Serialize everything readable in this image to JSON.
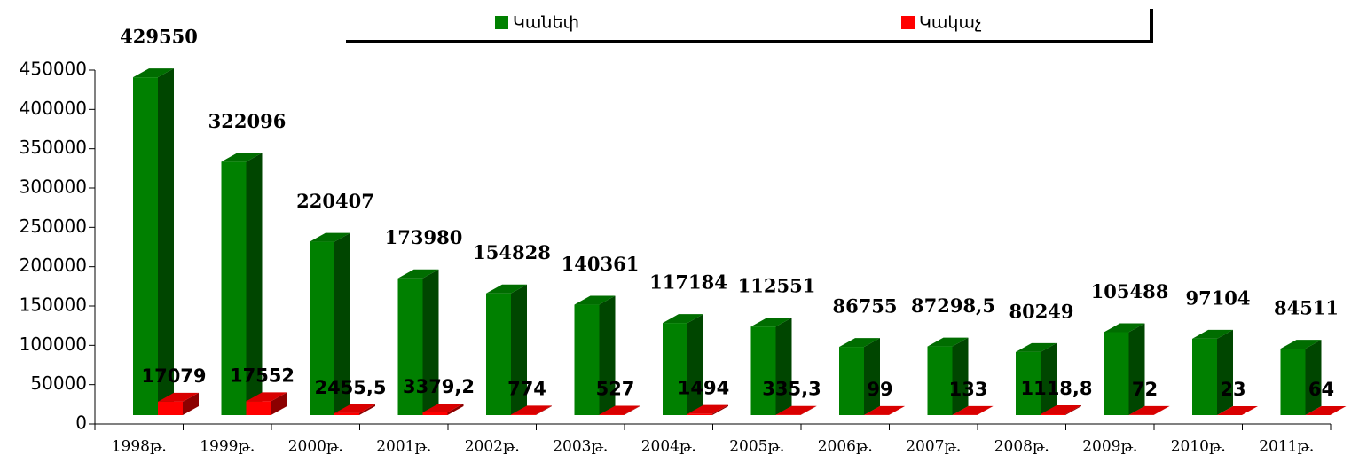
{
  "chart_data": {
    "type": "bar3d",
    "categories": [
      "1998թ.",
      "1999թ.",
      "2000թ.",
      "2001թ.",
      "2002թ.",
      "2003թ.",
      "2004թ.",
      "2005թ.",
      "2006թ.",
      "2007թ.",
      "2008թ.",
      "2009թ.",
      "2010թ.",
      "2011թ."
    ],
    "series": [
      {
        "name": "Կանեփ",
        "color": "#008000",
        "values": [
          429550,
          322096,
          220407,
          173980,
          154828,
          140361,
          117184,
          112551,
          86755,
          87298.5,
          80249,
          105488,
          97104,
          84511
        ],
        "value_labels": [
          "429550",
          "322096",
          "220407",
          "173980",
          "154828",
          "140361",
          "117184",
          "112551",
          "86755",
          "87298,5",
          "80249",
          "105488",
          "97104",
          "84511"
        ]
      },
      {
        "name": "Կակաչ",
        "color": "#ff0000",
        "values": [
          17079,
          17552,
          2455.5,
          3379.2,
          774,
          527,
          1494,
          335.3,
          99,
          133,
          1118.8,
          72,
          23,
          64
        ],
        "value_labels": [
          "17079",
          "17552",
          "2455,5",
          "3379,2",
          "774",
          "527",
          "1494",
          "335,3",
          "99",
          "133",
          "1118,8",
          "72",
          "23",
          "64"
        ]
      }
    ],
    "ylim": [
      0,
      450000
    ],
    "yticks": [
      0,
      50000,
      100000,
      150000,
      200000,
      250000,
      300000,
      350000,
      400000,
      450000
    ],
    "legend": "top"
  }
}
